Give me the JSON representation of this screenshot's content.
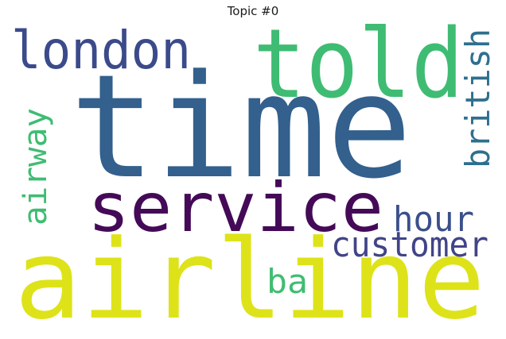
{
  "title": "Topic #0",
  "words": [
    {
      "text": "time",
      "color": "#33608d"
    },
    {
      "text": "airline",
      "color": "#dde318"
    },
    {
      "text": "told",
      "color": "#3fbc73"
    },
    {
      "text": "service",
      "color": "#440a57"
    },
    {
      "text": "london",
      "color": "#3b4a8a"
    },
    {
      "text": "customer",
      "color": "#414487"
    },
    {
      "text": "hour",
      "color": "#3b4f8a"
    },
    {
      "text": "british",
      "color": "#2e6f8e"
    },
    {
      "text": "airway",
      "color": "#3fbc73"
    },
    {
      "text": "ba",
      "color": "#40bd72"
    }
  ]
}
